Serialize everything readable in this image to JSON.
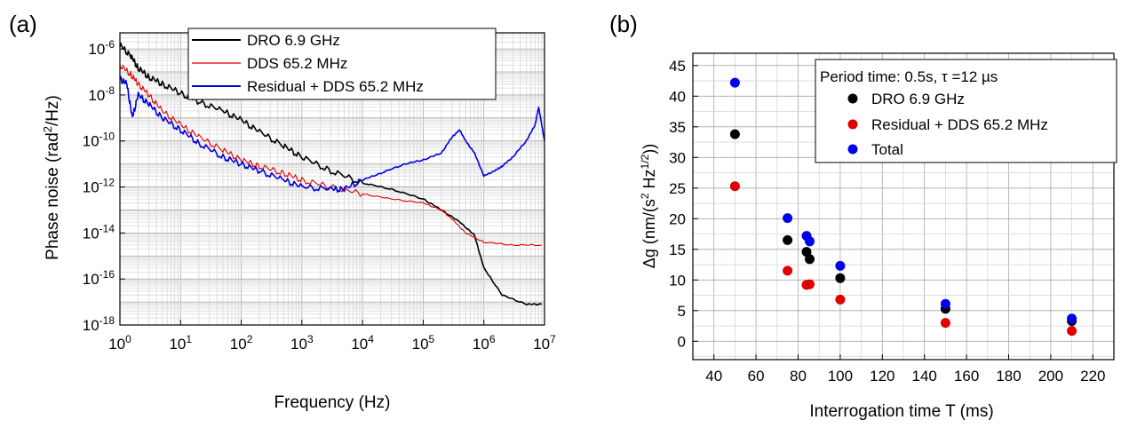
{
  "chart_data": [
    {
      "panel_label": "(a)",
      "type": "line",
      "xlabel": "Frequency (Hz)",
      "ylabel_main": "Phase noise (rad",
      "ylabel_sup": "2",
      "ylabel_tail": "/Hz)",
      "xscale": "log",
      "yscale": "log",
      "xlim": [
        1,
        10000000
      ],
      "ylim": [
        1e-18,
        5e-06
      ],
      "grid": true,
      "x_ticks": [
        {
          "value": 1,
          "base": "10",
          "exp": "0"
        },
        {
          "value": 10,
          "base": "10",
          "exp": "1"
        },
        {
          "value": 100,
          "base": "10",
          "exp": "2"
        },
        {
          "value": 1000,
          "base": "10",
          "exp": "3"
        },
        {
          "value": 10000,
          "base": "10",
          "exp": "4"
        },
        {
          "value": 100000,
          "base": "10",
          "exp": "5"
        },
        {
          "value": 1000000,
          "base": "10",
          "exp": "6"
        },
        {
          "value": 10000000,
          "base": "10",
          "exp": "7"
        }
      ],
      "y_ticks": [
        {
          "value": 1e-06,
          "base": "10",
          "exp": "-6"
        },
        {
          "value": 1e-08,
          "base": "10",
          "exp": "-8"
        },
        {
          "value": 1e-10,
          "base": "10",
          "exp": "-10"
        },
        {
          "value": 1e-12,
          "base": "10",
          "exp": "-12"
        },
        {
          "value": 1e-14,
          "base": "10",
          "exp": "-14"
        },
        {
          "value": 1e-16,
          "base": "10",
          "exp": "-16"
        },
        {
          "value": 1e-18,
          "base": "10",
          "exp": "-18"
        }
      ],
      "legend_position": "top",
      "series": [
        {
          "name": "DRO 6.9 GHz",
          "color": "#000000",
          "x": [
            1,
            1.5,
            2,
            3,
            5,
            10,
            20,
            50,
            100,
            200,
            500,
            1000,
            3000,
            10000,
            30000,
            100000,
            200000,
            400000,
            700000,
            1000000,
            2000000,
            5000000,
            9000000
          ],
          "y": [
            1.5e-06,
            5e-07,
            1.5e-07,
            6e-08,
            3e-08,
            1.2e-08,
            5e-09,
            2e-09,
            8e-10,
            2.5e-10,
            6e-11,
            2e-11,
            5e-12,
            1.5e-12,
            8e-13,
            3e-13,
            1e-13,
            3e-14,
            8e-15,
            3e-16,
            2e-17,
            8e-18,
            8e-18
          ]
        },
        {
          "name": "DDS 65.2 MHz",
          "color": "#e00000",
          "x": [
            1,
            1.5,
            2,
            3,
            5,
            10,
            20,
            50,
            100,
            200,
            500,
            1000,
            3000,
            10000,
            30000,
            100000,
            200000,
            300000,
            500000,
            1000000,
            3000000,
            9000000
          ],
          "y": [
            2e-07,
            8e-08,
            3e-08,
            1e-08,
            2e-09,
            5e-10,
            1.5e-10,
            4e-11,
            1.5e-11,
            8e-12,
            4e-12,
            2e-12,
            1e-12,
            5e-13,
            3e-13,
            2e-13,
            1e-13,
            4e-14,
            1e-14,
            4e-15,
            3e-15,
            3e-15
          ]
        },
        {
          "name": "Residual + DDS 65.2 MHz",
          "color": "#0000dd",
          "x": [
            1,
            1.3,
            1.6,
            2,
            3,
            5,
            10,
            20,
            50,
            100,
            200,
            500,
            1000,
            3000,
            5000,
            10000,
            20000,
            50000,
            100000,
            200000,
            300000,
            400000,
            500000,
            700000,
            1000000,
            1500000,
            2000000,
            3000000,
            5000000,
            7000000,
            8000000,
            9000000,
            10000000
          ],
          "y": [
            5e-08,
            3e-08,
            1e-09,
            1e-08,
            4e-09,
            1e-09,
            3e-10,
            8e-11,
            2e-11,
            1e-11,
            5e-12,
            2e-12,
            1e-12,
            8e-13,
            8e-13,
            2e-12,
            4e-12,
            1e-11,
            1.5e-11,
            3e-11,
            1.5e-10,
            3e-10,
            1e-10,
            3e-11,
            3e-12,
            5e-12,
            8e-12,
            2e-11,
            1e-10,
            5e-10,
            3e-09,
            5e-10,
            1e-10
          ]
        }
      ]
    },
    {
      "panel_label": "(b)",
      "type": "scatter",
      "xlabel": "Interrogation time T (ms)",
      "ylabel_main": "Δg (nm/(s",
      "ylabel_sup1": "2",
      "ylabel_mid": " Hz",
      "ylabel_sup2": "1/2",
      "ylabel_tail": "))",
      "xlim": [
        30,
        230
      ],
      "ylim": [
        -3,
        47
      ],
      "grid": true,
      "x_ticks": [
        40,
        60,
        80,
        100,
        120,
        140,
        160,
        180,
        200,
        220
      ],
      "y_ticks": [
        0,
        5,
        10,
        15,
        20,
        25,
        30,
        35,
        40,
        45
      ],
      "legend_title": "Period time: 0.5s, τ =12 µs",
      "legend_position": "top-right",
      "series": [
        {
          "name": "DRO 6.9 GHz",
          "color": "#000000",
          "x": [
            50,
            75,
            84,
            85.5,
            100,
            150,
            210
          ],
          "y": [
            33.8,
            16.5,
            14.6,
            13.4,
            10.3,
            5.3,
            3.3
          ]
        },
        {
          "name": "Residual + DDS 65.2 MHz",
          "color": "#e00000",
          "x": [
            50,
            75,
            84,
            85.5,
            100,
            150,
            210
          ],
          "y": [
            25.3,
            11.5,
            9.2,
            9.3,
            6.8,
            3.0,
            1.7
          ]
        },
        {
          "name": "Total",
          "color": "#0000ee",
          "x": [
            50,
            75,
            84,
            85.5,
            100,
            150,
            210
          ],
          "y": [
            42.2,
            20.1,
            17.2,
            16.3,
            12.3,
            6.1,
            3.7
          ]
        }
      ]
    }
  ]
}
